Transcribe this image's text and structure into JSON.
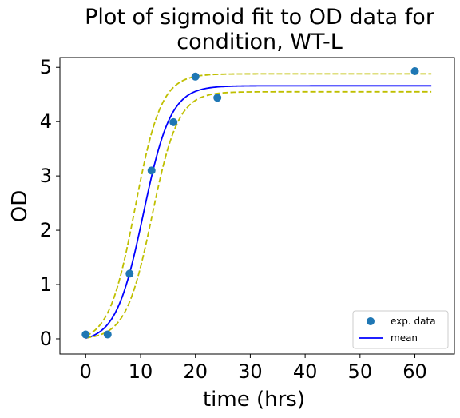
{
  "chart_data": {
    "type": "scatter",
    "title_line1": "Plot of sigmoid fit to OD data for",
    "title_line2": "condition, WT-L",
    "xlabel": "time (hrs)",
    "ylabel": "OD",
    "xlim": [
      -4.7,
      67.2
    ],
    "ylim": [
      -0.28,
      5.18
    ],
    "xticks": [
      0,
      10,
      20,
      30,
      40,
      50,
      60
    ],
    "yticks": [
      0,
      1,
      2,
      3,
      4,
      5
    ],
    "grid": false,
    "legend": {
      "placement": "lower-right",
      "entries": [
        "exp. data",
        "mean"
      ]
    },
    "series": [
      {
        "name": "exp. data",
        "kind": "scatter",
        "color": "#1f77b4",
        "x": [
          0,
          4,
          8,
          12,
          16,
          20,
          24,
          60
        ],
        "y": [
          0.08,
          0.08,
          1.2,
          3.1,
          3.99,
          4.83,
          4.44,
          4.93
        ]
      },
      {
        "name": "mean",
        "kind": "line",
        "color": "#0000ff",
        "sigmoid": {
          "A": 4.72,
          "k": 0.4,
          "t0": 10.5,
          "c": -0.06
        }
      },
      {
        "kind": "dashed-line",
        "color": "#bfbf00",
        "sigmoid": {
          "A": 4.94,
          "k": 0.42,
          "t0": 9.0,
          "c": -0.06
        }
      },
      {
        "kind": "dashed-line",
        "color": "#bfbf00",
        "sigmoid": {
          "A": 4.56,
          "k": 0.42,
          "t0": 12.1,
          "c": -0.01
        }
      }
    ]
  }
}
